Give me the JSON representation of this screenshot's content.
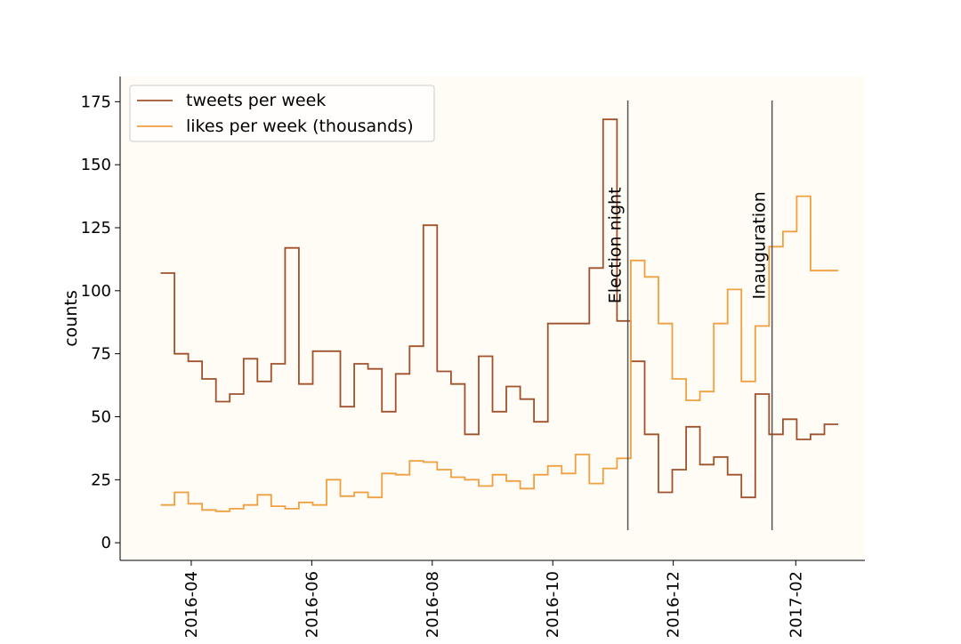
{
  "chart_data": {
    "type": "line",
    "drawstyle": "steps",
    "title": "",
    "xlabel": "",
    "ylabel": "counts",
    "xlim": [
      "2016-02-25",
      "2017-03-08"
    ],
    "ylim": [
      -7,
      185
    ],
    "y_ticks": [
      0,
      25,
      50,
      75,
      100,
      125,
      150,
      175
    ],
    "x_ticks": [
      {
        "label": "2016-04",
        "date": "2016-04-01"
      },
      {
        "label": "2016-06",
        "date": "2016-06-01"
      },
      {
        "label": "2016-08",
        "date": "2016-08-01"
      },
      {
        "label": "2016-10",
        "date": "2016-10-01"
      },
      {
        "label": "2016-12",
        "date": "2016-12-01"
      },
      {
        "label": "2017-02",
        "date": "2017-02-01"
      }
    ],
    "grid": false,
    "legend": "top-left",
    "background": "#fffbf5",
    "x": [
      "2016-03-20",
      "2016-03-27",
      "2016-04-03",
      "2016-04-10",
      "2016-04-17",
      "2016-04-24",
      "2016-05-01",
      "2016-05-08",
      "2016-05-15",
      "2016-05-22",
      "2016-05-29",
      "2016-06-05",
      "2016-06-12",
      "2016-06-19",
      "2016-06-26",
      "2016-07-03",
      "2016-07-10",
      "2016-07-17",
      "2016-07-24",
      "2016-07-31",
      "2016-08-07",
      "2016-08-14",
      "2016-08-21",
      "2016-08-28",
      "2016-09-04",
      "2016-09-11",
      "2016-09-18",
      "2016-09-25",
      "2016-10-02",
      "2016-10-09",
      "2016-10-16",
      "2016-10-23",
      "2016-10-30",
      "2016-11-06",
      "2016-11-13",
      "2016-11-20",
      "2016-11-27",
      "2016-12-04",
      "2016-12-11",
      "2016-12-18",
      "2016-12-25",
      "2017-01-01",
      "2017-01-08",
      "2017-01-15",
      "2017-01-22",
      "2017-01-29",
      "2017-02-05",
      "2017-02-12",
      "2017-02-19"
    ],
    "series": [
      {
        "name": "tweets per week",
        "color": "#a0522d",
        "values": [
          107,
          75,
          72,
          65,
          56,
          59,
          73,
          64,
          71,
          117,
          63,
          76,
          76,
          54,
          71,
          69,
          52,
          67,
          78,
          126,
          68,
          63,
          43,
          74,
          52,
          62,
          57,
          48,
          87,
          87,
          87,
          109,
          168,
          88,
          72,
          43,
          20,
          29,
          46,
          31,
          34,
          27,
          18,
          59,
          43,
          49,
          41,
          43,
          47
        ]
      },
      {
        "name": "likes per week (thousands)",
        "color": "#f0a040",
        "values": [
          15,
          20,
          15.5,
          13,
          12.5,
          13.5,
          15,
          19,
          14.5,
          13.5,
          16,
          15,
          25,
          18.5,
          20,
          18,
          27.5,
          27,
          32.5,
          32,
          29,
          26,
          25,
          22.5,
          27,
          24.5,
          21.5,
          27,
          30.5,
          27.5,
          35,
          23.5,
          29.5,
          33.5,
          112,
          105.5,
          87,
          65,
          56.5,
          60,
          87,
          100.5,
          64,
          86,
          117.5,
          123.5,
          137.5,
          108,
          108
        ]
      }
    ],
    "annotations": [
      {
        "label": "Election night",
        "date": "2016-11-08",
        "line_color": "#555555"
      },
      {
        "label": "Inauguration",
        "date": "2017-01-20",
        "line_color": "#555555"
      }
    ]
  }
}
